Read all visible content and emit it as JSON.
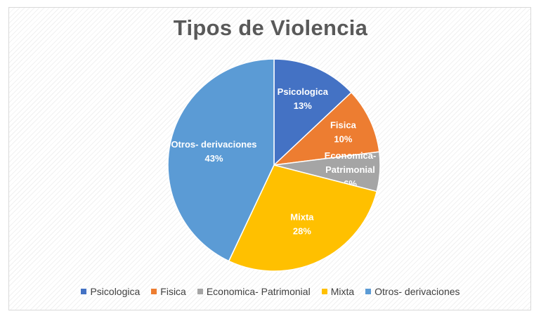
{
  "chart_data": {
    "type": "pie",
    "title": "Tipos de Violencia",
    "categories": [
      "Psicologica",
      "Fisica",
      "Economica- Patrimonial",
      "Mixta",
      "Otros- derivaciones"
    ],
    "values": [
      13,
      10,
      6,
      28,
      43
    ],
    "value_labels": [
      "13%",
      "10%",
      "6%",
      "28%",
      "43%"
    ],
    "slice_label_lines": [
      [
        "Psicologica",
        "13%"
      ],
      [
        "Fisica",
        "10%"
      ],
      [
        "Economica-",
        "Patrimonial",
        "6%"
      ],
      [
        "Mixta",
        "28%"
      ],
      [
        "Otros- derivaciones",
        "43%"
      ]
    ],
    "colors": [
      "#4472c4",
      "#ed7d31",
      "#a5a5a5",
      "#ffc000",
      "#5b9bd5"
    ],
    "legend_position": "bottom",
    "start_angle": "12 o'clock",
    "direction": "clockwise"
  }
}
